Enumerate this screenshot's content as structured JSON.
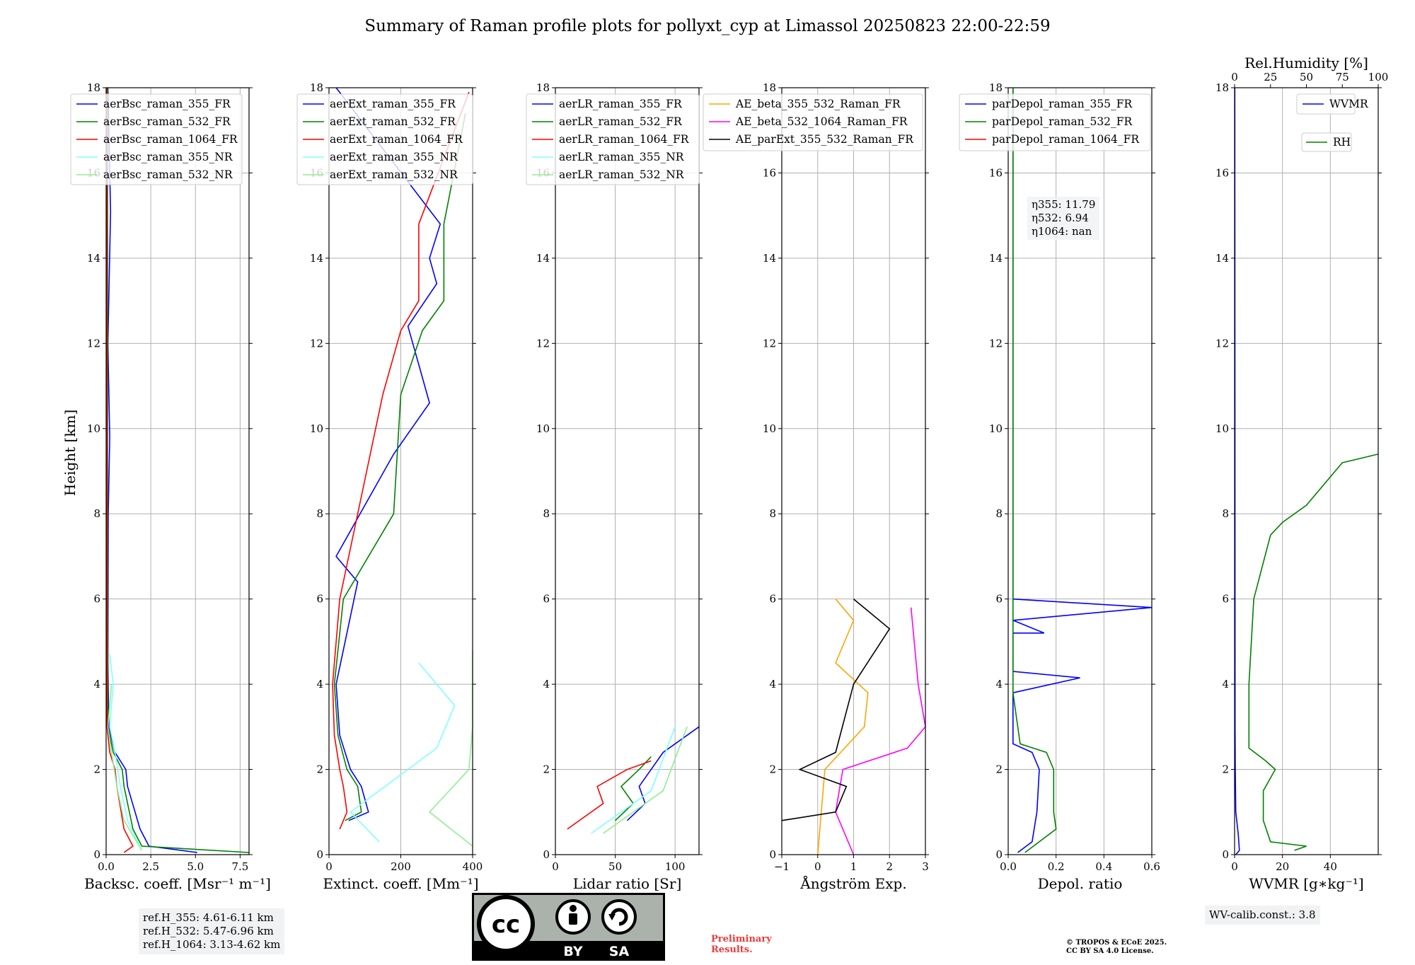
{
  "title": "Summary of Raman profile plots for pollyxt_cyp at Limassol 20250823 22:00-22:59",
  "ylabel": "Height [km]",
  "colors": {
    "blue": "#0000ff",
    "green": "#008000",
    "red": "#ff0000",
    "cyan": "#80ffff",
    "lightgreen": "#90ee90",
    "orange": "#ffa500",
    "magenta": "#ff00ff",
    "black": "#000000"
  },
  "ref_heights": [
    "ref.H_355: 4.61-6.11 km",
    "ref.H_532: 5.47-6.96 km",
    "ref.H_1064: 3.13-4.62 km"
  ],
  "eta": [
    "η355: 11.79",
    "η532: 6.94",
    "η1064: nan"
  ],
  "wv_calib": "WV-calib.const.: 3.8",
  "preliminary": [
    "Preliminary",
    "Results."
  ],
  "copyright": [
    "© TROPOS & ECoE 2025.",
    "CC BY SA 4.0 License."
  ],
  "license_badge": {
    "by": "BY",
    "sa": "SA"
  },
  "chart_data": [
    {
      "type": "line",
      "xlabel": "Backsc. coeff. [Msr⁻¹ m⁻¹]",
      "xlim": [
        0,
        8
      ],
      "ylim": [
        0,
        18
      ],
      "xticks": [
        "0.0",
        "2.5",
        "5.0",
        "7.5"
      ],
      "xtick_values": [
        0,
        2.5,
        5,
        7.5
      ],
      "yticks": [
        "0",
        "2",
        "4",
        "6",
        "8",
        "10",
        "12",
        "14",
        "16",
        "18"
      ],
      "grid": true,
      "legend": "top",
      "series": [
        {
          "name": "aerBsc_raman_355_FR",
          "color": "blue",
          "values": [
            [
              5.1,
              0.05
            ],
            [
              2.4,
              0.2
            ],
            [
              1.9,
              0.6
            ],
            [
              1.2,
              1.6
            ],
            [
              1.1,
              2.0
            ],
            [
              0.5,
              2.4
            ],
            [
              0.15,
              3.0
            ],
            [
              0.1,
              4.5
            ],
            [
              0.12,
              8
            ],
            [
              0.2,
              9.8
            ],
            [
              0.1,
              12
            ],
            [
              0.25,
              15.1
            ],
            [
              0.1,
              18
            ]
          ]
        },
        {
          "name": "aerBsc_raman_532_FR",
          "color": "green",
          "values": [
            [
              8.0,
              0.05
            ],
            [
              2.0,
              0.2
            ],
            [
              1.5,
              0.6
            ],
            [
              1.0,
              1.6
            ],
            [
              0.9,
              2.0
            ],
            [
              0.4,
              2.4
            ],
            [
              0.1,
              3.0
            ],
            [
              0.08,
              6
            ],
            [
              0.08,
              12
            ],
            [
              0.08,
              18
            ]
          ]
        },
        {
          "name": "aerBsc_raman_1064_FR",
          "color": "red",
          "values": [
            [
              1.0,
              0.05
            ],
            [
              1.5,
              0.2
            ],
            [
              1.0,
              0.6
            ],
            [
              0.6,
              1.6
            ],
            [
              0.5,
              2.0
            ],
            [
              0.2,
              2.4
            ],
            [
              0.05,
              3.0
            ],
            [
              0.03,
              18
            ]
          ]
        },
        {
          "name": "aerBsc_raman_355_NR",
          "color": "cyan",
          "values": [
            [
              2.0,
              0.1
            ],
            [
              1.2,
              0.8
            ],
            [
              0.8,
              1.6
            ],
            [
              0.5,
              2.4
            ],
            [
              0.2,
              3.0
            ],
            [
              0.4,
              4.0
            ],
            [
              0.2,
              4.7
            ]
          ]
        },
        {
          "name": "aerBsc_raman_532_NR",
          "color": "lightgreen",
          "values": [
            [
              2.0,
              0.1
            ],
            [
              1.0,
              0.8
            ],
            [
              0.6,
              1.6
            ],
            [
              0.3,
              2.4
            ],
            [
              0.1,
              3.0
            ],
            [
              0.3,
              4.0
            ]
          ]
        }
      ]
    },
    {
      "type": "line",
      "xlabel": "Extinct. coeff. [Mm⁻¹]",
      "xlim": [
        0,
        400
      ],
      "ylim": [
        0,
        18
      ],
      "xticks": [
        "0",
        "200",
        "400"
      ],
      "xtick_values": [
        0,
        200,
        400
      ],
      "yticks": [
        "0",
        "2",
        "4",
        "6",
        "8",
        "10",
        "12",
        "14",
        "16",
        "18"
      ],
      "grid": true,
      "legend": "top",
      "series": [
        {
          "name": "aerExt_raman_355_FR",
          "color": "blue",
          "values": [
            [
              55,
              0.8
            ],
            [
              110,
              1.0
            ],
            [
              90,
              1.6
            ],
            [
              60,
              2.0
            ],
            [
              30,
              2.8
            ],
            [
              20,
              4.0
            ],
            [
              80,
              6.4
            ],
            [
              20,
              7.0
            ],
            [
              180,
              9.4
            ],
            [
              280,
              10.6
            ],
            [
              250,
              11.5
            ],
            [
              220,
              12.4
            ],
            [
              300,
              13.4
            ],
            [
              280,
              14.0
            ],
            [
              310,
              14.8
            ],
            [
              20,
              18
            ]
          ]
        },
        {
          "name": "aerExt_raman_532_FR",
          "color": "green",
          "values": [
            [
              45,
              0.8
            ],
            [
              90,
              1.0
            ],
            [
              80,
              1.6
            ],
            [
              50,
              2.0
            ],
            [
              25,
              2.8
            ],
            [
              15,
              4.0
            ],
            [
              40,
              6.0
            ],
            [
              180,
              8.0
            ],
            [
              200,
              10.8
            ],
            [
              260,
              12.3
            ],
            [
              320,
              13.0
            ],
            [
              320,
              14.8
            ],
            [
              380,
              17.4
            ]
          ]
        },
        {
          "name": "aerExt_raman_1064_FR",
          "color": "red",
          "values": [
            [
              30,
              0.6
            ],
            [
              50,
              1.0
            ],
            [
              40,
              1.6
            ],
            [
              30,
              2.0
            ],
            [
              15,
              2.8
            ],
            [
              10,
              4.0
            ],
            [
              30,
              6.0
            ],
            [
              80,
              8.0
            ],
            [
              150,
              10.8
            ],
            [
              200,
              12.3
            ],
            [
              250,
              13.0
            ],
            [
              250,
              14.8
            ],
            [
              390,
              17.9
            ]
          ]
        },
        {
          "name": "aerExt_raman_355_NR",
          "color": "cyan",
          "values": [
            [
              140,
              0.3
            ],
            [
              60,
              1.0
            ],
            [
              300,
              2.5
            ],
            [
              350,
              3.5
            ],
            [
              250,
              4.5
            ]
          ]
        },
        {
          "name": "aerExt_raman_532_NR",
          "color": "lightgreen",
          "values": [
            [
              400,
              0.2
            ],
            [
              280,
              1.0
            ],
            [
              390,
              2.0
            ],
            [
              400,
              3.0
            ],
            [
              400,
              4.8
            ]
          ]
        }
      ]
    },
    {
      "type": "line",
      "xlabel": "Lidar ratio [Sr]",
      "xlim": [
        0,
        120
      ],
      "ylim": [
        0,
        18
      ],
      "xticks": [
        "0",
        "50",
        "100"
      ],
      "xtick_values": [
        0,
        50,
        100
      ],
      "yticks": [
        "0",
        "2",
        "4",
        "6",
        "8",
        "10",
        "12",
        "14",
        "16",
        "18"
      ],
      "grid": true,
      "legend": "top",
      "series": [
        {
          "name": "aerLR_raman_355_FR",
          "color": "blue",
          "values": [
            [
              60,
              0.8
            ],
            [
              75,
              1.2
            ],
            [
              70,
              1.6
            ],
            [
              80,
              2.0
            ],
            [
              90,
              2.4
            ],
            [
              120,
              3.0
            ]
          ]
        },
        {
          "name": "aerLR_raman_532_FR",
          "color": "green",
          "values": [
            [
              50,
              0.8
            ],
            [
              65,
              1.2
            ],
            [
              55,
              1.6
            ],
            [
              70,
              2.0
            ],
            [
              80,
              2.3
            ]
          ]
        },
        {
          "name": "aerLR_raman_1064_FR",
          "color": "red",
          "values": [
            [
              10,
              0.6
            ],
            [
              40,
              1.2
            ],
            [
              35,
              1.6
            ],
            [
              60,
              2.0
            ],
            [
              80,
              2.2
            ]
          ]
        },
        {
          "name": "aerLR_raman_355_NR",
          "color": "cyan",
          "values": [
            [
              30,
              0.5
            ],
            [
              80,
              1.5
            ],
            [
              100,
              3.0
            ]
          ]
        },
        {
          "name": "aerLR_raman_532_NR",
          "color": "lightgreen",
          "values": [
            [
              40,
              0.5
            ],
            [
              90,
              1.5
            ],
            [
              110,
              3.0
            ]
          ]
        }
      ]
    },
    {
      "type": "line",
      "xlabel": "Ångström Exp.",
      "xlim": [
        -1,
        3
      ],
      "ylim": [
        0,
        18
      ],
      "xticks": [
        "−1",
        "0",
        "1",
        "2",
        "3"
      ],
      "xtick_values": [
        -1,
        0,
        1,
        2,
        3
      ],
      "yticks": [
        "0",
        "2",
        "4",
        "6",
        "8",
        "10",
        "12",
        "14",
        "16",
        "18"
      ],
      "grid": true,
      "legend": "top",
      "series": [
        {
          "name": "AE_beta_355_532_Raman_FR",
          "color": "orange",
          "values": [
            [
              0.0,
              0.0
            ],
            [
              0.1,
              1.0
            ],
            [
              0.2,
              2.0
            ],
            [
              1.3,
              3.0
            ],
            [
              1.4,
              3.8
            ],
            [
              0.5,
              4.5
            ],
            [
              1.0,
              5.5
            ],
            [
              0.5,
              6.0
            ]
          ]
        },
        {
          "name": "AE_beta_532_1064_Raman_FR",
          "color": "magenta",
          "values": [
            [
              1.0,
              0.0
            ],
            [
              0.5,
              1.0
            ],
            [
              0.7,
              2.0
            ],
            [
              2.5,
              2.5
            ],
            [
              3.0,
              3.0
            ],
            [
              2.8,
              4.0
            ],
            [
              2.6,
              5.8
            ]
          ]
        },
        {
          "name": "AE_parExt_355_532_Raman_FR",
          "color": "black",
          "values": [
            [
              -1,
              0.8
            ],
            [
              0.5,
              1.0
            ],
            [
              0.8,
              1.6
            ],
            [
              -0.5,
              2.0
            ],
            [
              0.5,
              2.4
            ],
            [
              1.0,
              4.0
            ],
            [
              2.0,
              5.3
            ],
            [
              1.0,
              6.0
            ]
          ]
        }
      ]
    },
    {
      "type": "line",
      "xlabel": "Depol. ratio",
      "xlim": [
        0,
        0.6
      ],
      "ylim": [
        0,
        18
      ],
      "xticks": [
        "0.0",
        "0.2",
        "0.4",
        "0.6"
      ],
      "xtick_values": [
        0,
        0.2,
        0.4,
        0.6
      ],
      "yticks": [
        "0",
        "2",
        "4",
        "6",
        "8",
        "10",
        "12",
        "14",
        "16",
        "18"
      ],
      "grid": true,
      "legend": "top",
      "series": [
        {
          "name": "parDepol_raman_355_FR",
          "color": "blue",
          "values": [
            [
              0.04,
              0.05
            ],
            [
              0.1,
              0.3
            ],
            [
              0.12,
              1.0
            ],
            [
              0.13,
              2.0
            ],
            [
              0.1,
              2.4
            ],
            [
              0.02,
              2.6
            ],
            [
              0.02,
              3.8
            ],
            [
              0.3,
              4.15
            ],
            [
              0.02,
              4.3
            ],
            [
              0.02,
              5.2
            ],
            [
              0.15,
              5.2
            ],
            [
              0.02,
              5.5
            ],
            [
              0.6,
              5.8
            ],
            [
              0.02,
              6.0
            ],
            [
              0.02,
              18
            ]
          ]
        },
        {
          "name": "parDepol_raman_532_FR",
          "color": "green",
          "values": [
            [
              0.07,
              0.05
            ],
            [
              0.2,
              0.6
            ],
            [
              0.19,
              1.0
            ],
            [
              0.19,
              2.0
            ],
            [
              0.16,
              2.4
            ],
            [
              0.05,
              2.6
            ],
            [
              0.02,
              3.8
            ],
            [
              0.02,
              18
            ]
          ]
        },
        {
          "name": "parDepol_raman_1064_FR",
          "color": "red",
          "values": []
        }
      ]
    },
    {
      "type": "line",
      "xlabel": "WVMR [g∗kg⁻¹]",
      "top_xlabel": "Rel.Humidity [%]",
      "xlim": [
        0,
        60
      ],
      "ylim": [
        0,
        18
      ],
      "top_xlim": [
        0,
        100
      ],
      "xticks": [
        "0",
        "20",
        "40"
      ],
      "xtick_values": [
        0,
        20,
        40
      ],
      "top_xticks": [
        "0",
        "25",
        "50",
        "75",
        "100"
      ],
      "top_xtick_values": [
        0,
        25,
        50,
        75,
        100
      ],
      "yticks": [
        "0",
        "2",
        "4",
        "6",
        "8",
        "10",
        "12",
        "14",
        "16",
        "18"
      ],
      "grid": true,
      "legend": "top-right",
      "series": [
        {
          "name": "WVMR",
          "color": "blue",
          "values": [
            [
              0.5,
              0.0
            ],
            [
              2.0,
              0.1
            ],
            [
              1.5,
              0.5
            ],
            [
              0.5,
              1.0
            ],
            [
              0.3,
              2.0
            ],
            [
              0.2,
              3.0
            ],
            [
              0.1,
              18
            ]
          ]
        },
        {
          "name": "RH",
          "color": "green",
          "values": [
            [
              25,
              0.1
            ],
            [
              30,
              0.2
            ],
            [
              15,
              0.3
            ],
            [
              12,
              0.8
            ],
            [
              12,
              1.5
            ],
            [
              17,
              2.0
            ],
            [
              13,
              2.2
            ],
            [
              6,
              2.5
            ],
            [
              6,
              4.0
            ],
            [
              8,
              6.0
            ],
            [
              15,
              7.5
            ],
            [
              20,
              7.8
            ],
            [
              30,
              8.2
            ],
            [
              45,
              9.2
            ],
            [
              60,
              9.4
            ]
          ]
        }
      ]
    }
  ]
}
